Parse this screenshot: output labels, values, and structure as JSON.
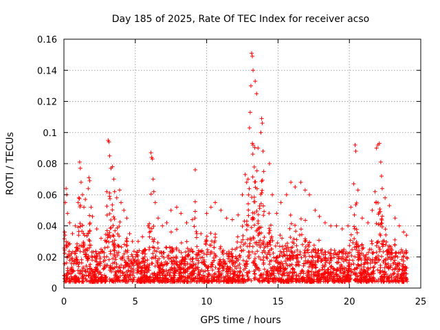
{
  "chart_data": {
    "type": "scatter",
    "title": "Day 185 of 2025, Rate Of TEC Index for receiver acso",
    "xlabel": "GPS time / hours",
    "ylabel": "ROTI / TECUs",
    "xlim": [
      0,
      25
    ],
    "ylim": [
      0,
      0.16
    ],
    "xticks": [
      0,
      5,
      10,
      15,
      20,
      25
    ],
    "xtick_labels": [
      "0",
      "5",
      "10",
      "15",
      "20",
      "25"
    ],
    "yticks": [
      0,
      0.02,
      0.04,
      0.06,
      0.08,
      0.1,
      0.12,
      0.14,
      0.16
    ],
    "ytick_labels": [
      "0",
      "0.02",
      "0.04",
      "0.06",
      "0.08",
      "0.1",
      "0.12",
      "0.14",
      "0.16"
    ],
    "grid": true,
    "marker": "+",
    "marker_color": "#ff0000",
    "series": [
      {
        "points": [
          [
            0.05,
            0.036
          ],
          [
            0.1,
            0.055
          ],
          [
            0.15,
            0.064
          ],
          [
            0.2,
            0.06
          ],
          [
            0.25,
            0.048
          ],
          [
            0.4,
            0.042
          ],
          [
            0.6,
            0.035
          ],
          [
            0.8,
            0.04
          ],
          [
            1.0,
            0.055
          ],
          [
            1.05,
            0.058
          ],
          [
            1.1,
            0.081
          ],
          [
            1.15,
            0.077
          ],
          [
            1.2,
            0.068
          ],
          [
            1.3,
            0.06
          ],
          [
            1.4,
            0.052
          ],
          [
            1.5,
            0.057
          ],
          [
            1.7,
            0.064
          ],
          [
            1.75,
            0.071
          ],
          [
            1.8,
            0.069
          ],
          [
            1.9,
            0.052
          ],
          [
            2.0,
            0.046
          ],
          [
            2.3,
            0.038
          ],
          [
            2.6,
            0.032
          ],
          [
            3.0,
            0.062
          ],
          [
            3.1,
            0.095
          ],
          [
            3.15,
            0.094
          ],
          [
            3.2,
            0.085
          ],
          [
            3.3,
            0.077
          ],
          [
            3.4,
            0.078
          ],
          [
            3.5,
            0.07
          ],
          [
            3.55,
            0.062
          ],
          [
            3.7,
            0.058
          ],
          [
            3.9,
            0.063
          ],
          [
            4.0,
            0.055
          ],
          [
            4.2,
            0.05
          ],
          [
            4.4,
            0.045
          ],
          [
            4.6,
            0.035
          ],
          [
            4.8,
            0.03
          ],
          [
            5.2,
            0.03
          ],
          [
            5.5,
            0.033
          ],
          [
            5.9,
            0.04
          ],
          [
            6.1,
            0.087
          ],
          [
            6.15,
            0.084
          ],
          [
            6.2,
            0.083
          ],
          [
            6.25,
            0.07
          ],
          [
            6.3,
            0.062
          ],
          [
            6.4,
            0.055
          ],
          [
            6.6,
            0.045
          ],
          [
            6.9,
            0.04
          ],
          [
            7.2,
            0.042
          ],
          [
            7.5,
            0.05
          ],
          [
            7.9,
            0.052
          ],
          [
            8.2,
            0.048
          ],
          [
            8.6,
            0.042
          ],
          [
            9.0,
            0.044
          ],
          [
            9.2,
            0.076
          ],
          [
            9.6,
            0.035
          ],
          [
            10.0,
            0.048
          ],
          [
            10.3,
            0.052
          ],
          [
            10.6,
            0.055
          ],
          [
            11.0,
            0.05
          ],
          [
            11.4,
            0.045
          ],
          [
            11.8,
            0.044
          ],
          [
            12.2,
            0.047
          ],
          [
            12.5,
            0.06
          ],
          [
            12.7,
            0.073
          ],
          [
            12.8,
            0.068
          ],
          [
            12.9,
            0.07
          ],
          [
            13.0,
            0.103
          ],
          [
            13.05,
            0.113
          ],
          [
            13.1,
            0.13
          ],
          [
            13.15,
            0.151
          ],
          [
            13.2,
            0.149
          ],
          [
            13.25,
            0.14
          ],
          [
            13.4,
            0.133
          ],
          [
            13.5,
            0.125
          ],
          [
            13.6,
            0.09
          ],
          [
            13.8,
            0.1
          ],
          [
            13.85,
            0.109
          ],
          [
            13.9,
            0.106
          ],
          [
            13.95,
            0.088
          ],
          [
            14.0,
            0.075
          ],
          [
            14.4,
            0.08
          ],
          [
            14.6,
            0.06
          ],
          [
            14.9,
            0.048
          ],
          [
            15.2,
            0.055
          ],
          [
            15.6,
            0.06
          ],
          [
            15.9,
            0.068
          ],
          [
            16.2,
            0.065
          ],
          [
            16.6,
            0.068
          ],
          [
            16.9,
            0.063
          ],
          [
            17.2,
            0.06
          ],
          [
            17.6,
            0.05
          ],
          [
            17.9,
            0.046
          ],
          [
            18.3,
            0.042
          ],
          [
            18.7,
            0.04
          ],
          [
            19.1,
            0.04
          ],
          [
            19.5,
            0.038
          ],
          [
            19.9,
            0.04
          ],
          [
            20.1,
            0.052
          ],
          [
            20.3,
            0.067
          ],
          [
            20.4,
            0.092
          ],
          [
            20.45,
            0.088
          ],
          [
            20.6,
            0.063
          ],
          [
            20.9,
            0.045
          ],
          [
            21.3,
            0.042
          ],
          [
            21.6,
            0.05
          ],
          [
            21.8,
            0.062
          ],
          [
            21.9,
            0.09
          ],
          [
            22.0,
            0.092
          ],
          [
            22.1,
            0.093
          ],
          [
            22.2,
            0.081
          ],
          [
            22.25,
            0.072
          ],
          [
            22.3,
            0.064
          ],
          [
            22.5,
            0.058
          ],
          [
            22.8,
            0.053
          ],
          [
            23.2,
            0.045
          ],
          [
            23.5,
            0.04
          ],
          [
            23.8,
            0.036
          ],
          [
            24.0,
            0.034
          ]
        ]
      }
    ]
  }
}
